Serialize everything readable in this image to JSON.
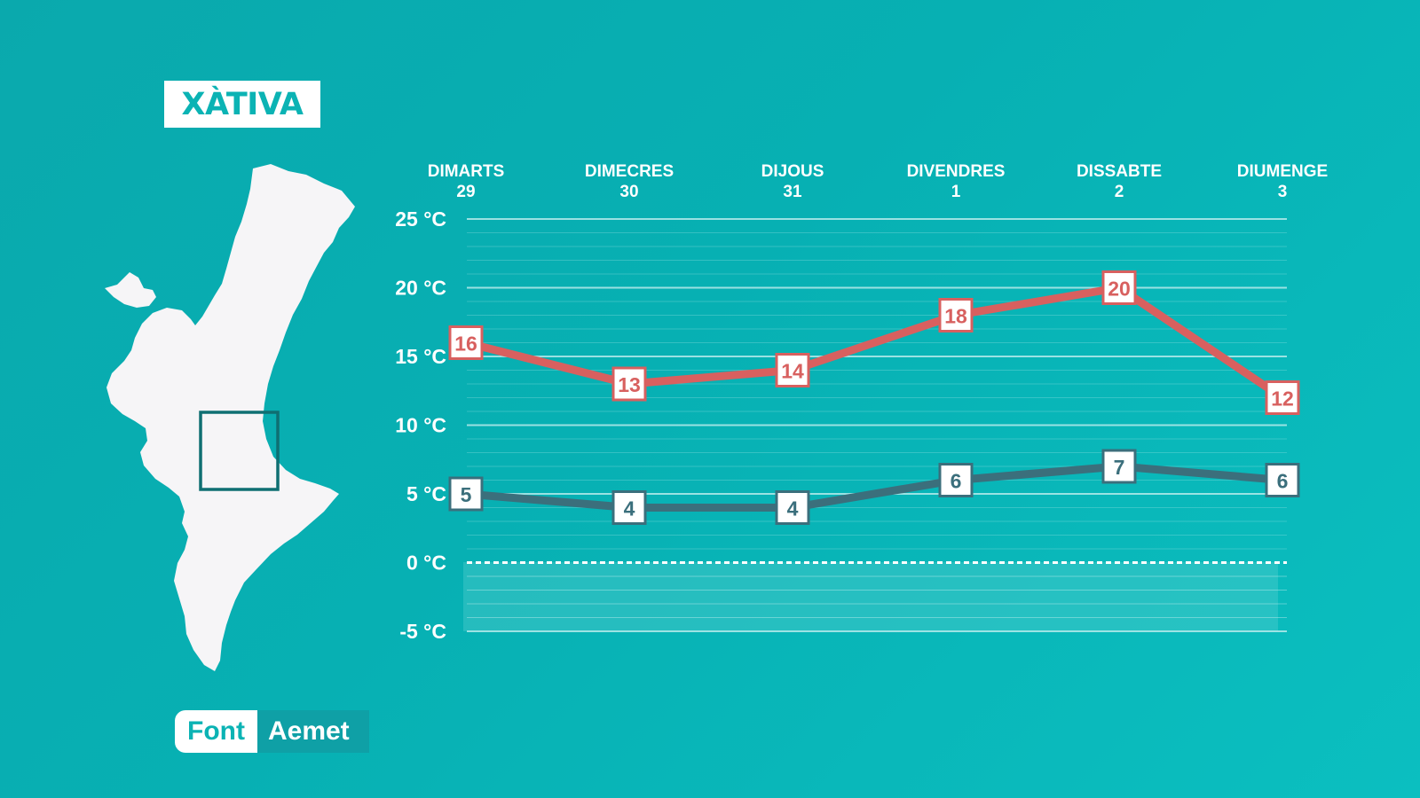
{
  "location_title": "XÀTIVA",
  "source": {
    "label": "Font",
    "value": "Aemet"
  },
  "colors": {
    "background": "#0ab1b3",
    "max_series": "#d8605f",
    "min_series": "#3b6f7c",
    "grid": "#bfeeee",
    "map": "#f6f5f7",
    "highlight_box": "#0f6f72"
  },
  "icons": {
    "map": "valencian-community-map",
    "locator": "region-highlight-box"
  },
  "chart_data": {
    "type": "line",
    "categories": [
      {
        "day": "DIMARTS",
        "date": "29"
      },
      {
        "day": "DIMECRES",
        "date": "30"
      },
      {
        "day": "DIJOUS",
        "date": "31"
      },
      {
        "day": "DIVENDRES",
        "date": "1"
      },
      {
        "day": "DISSABTE",
        "date": "2"
      },
      {
        "day": "DIUMENGE",
        "date": "3"
      }
    ],
    "series": [
      {
        "key": "max",
        "values": [
          16,
          13,
          14,
          18,
          20,
          12
        ]
      },
      {
        "key": "min",
        "values": [
          5,
          4,
          4,
          6,
          7,
          6
        ]
      }
    ],
    "yticks": [
      "25 °C",
      "20 °C",
      "15 °C",
      "10 °C",
      "5 °C",
      "0 °C",
      "-5 °C"
    ],
    "ytick_values": [
      25,
      20,
      15,
      10,
      5,
      0,
      -5
    ],
    "ylim": [
      -5,
      25
    ],
    "grid": true,
    "zero_line": "dashed"
  }
}
